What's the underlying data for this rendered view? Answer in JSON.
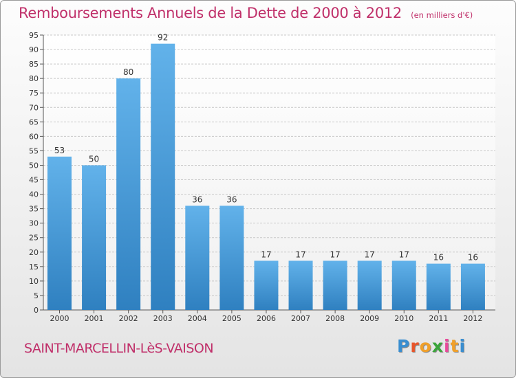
{
  "chart_data": {
    "type": "bar",
    "title": "Remboursements Annuels de la Dette de 2000 à 2012",
    "unit_note": "(en milliers d'€)",
    "categories": [
      "2000",
      "2001",
      "2002",
      "2003",
      "2004",
      "2005",
      "2006",
      "2007",
      "2008",
      "2009",
      "2010",
      "2011",
      "2012"
    ],
    "values": [
      53,
      50,
      80,
      92,
      36,
      36,
      17,
      17,
      17,
      17,
      17,
      16,
      16
    ],
    "ylim": [
      0,
      95
    ],
    "y_ticks": [
      0,
      5,
      10,
      15,
      20,
      25,
      30,
      35,
      40,
      45,
      50,
      55,
      60,
      65,
      70,
      75,
      80,
      85,
      90,
      95
    ],
    "grid": true,
    "bar_color": "#4a9ed8"
  },
  "footer": {
    "commune": "SAINT-MARCELLIN-LèS-VAISON",
    "logo": {
      "letters": [
        "P",
        "r",
        "o",
        "x",
        "i",
        "t",
        "i"
      ],
      "colors": [
        "#3a8ed0",
        "#e8552a",
        "#f0a02a",
        "#3aa53a",
        "#e84a9a",
        "#f0a02a",
        "#3a8ed0"
      ]
    }
  }
}
